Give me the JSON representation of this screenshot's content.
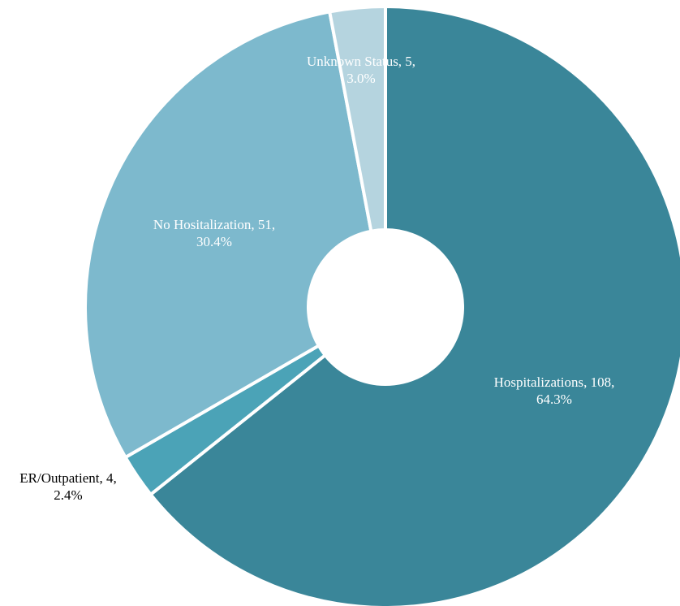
{
  "chart_data": {
    "type": "pie",
    "donut": true,
    "title": "",
    "slices": [
      {
        "name": "Hospitalizations",
        "value": 108,
        "pct_label": "64.3%",
        "label_line1": "Hospitalizations, 108,",
        "label_line2": "64.3%",
        "color": "#3a8699",
        "label_color": "#ffffff"
      },
      {
        "name": "ER/Outpatient",
        "value": 4,
        "pct_label": "2.4%",
        "label_line1": "ER/Outpatient, 4,",
        "label_line2": "2.4%",
        "color": "#4ba3b7",
        "label_color": "#000000"
      },
      {
        "name": "No Hositalization",
        "value": 51,
        "pct_label": "30.4%",
        "label_line1": "No Hositalization, 51,",
        "label_line2": "30.4%",
        "color": "#7db9cd",
        "label_color": "#ffffff"
      },
      {
        "name": "Unknown Status",
        "value": 5,
        "pct_label": "3.0%",
        "label_line1": "Unknown Status, 5,",
        "label_line2": "3.0%",
        "color": "#b5d4df",
        "label_color": "#ffffff"
      }
    ]
  }
}
